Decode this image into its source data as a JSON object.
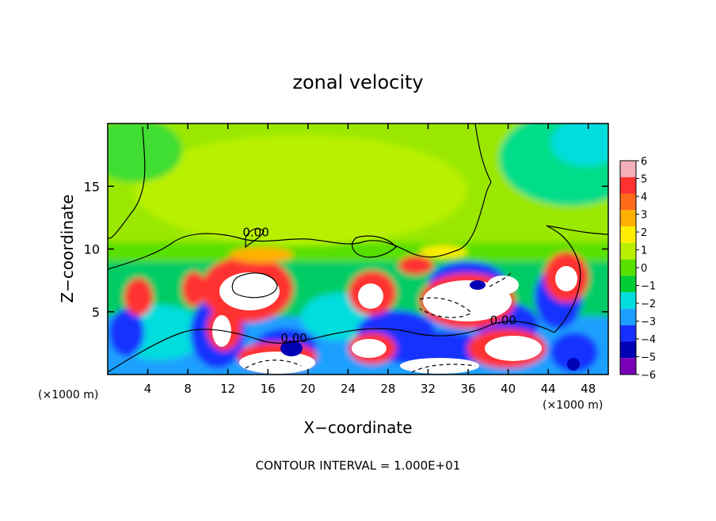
{
  "chart_data": {
    "type": "heatmap",
    "title": "zonal velocity",
    "xlabel": "X−coordinate",
    "ylabel": "Z−coordinate",
    "x_unit_left": "(×1000 m)",
    "x_unit_right": "(×1000 m)",
    "xlim": [
      0,
      50
    ],
    "ylim": [
      0,
      20
    ],
    "x_ticks": [
      4,
      8,
      12,
      16,
      20,
      24,
      28,
      32,
      36,
      40,
      44,
      48
    ],
    "y_ticks": [
      5,
      10,
      15
    ],
    "colorbar": {
      "min": -6,
      "max": 6,
      "ticks": [
        6,
        5,
        4,
        3,
        2,
        1,
        0,
        -1,
        -2,
        -3,
        -4,
        -5,
        -6
      ],
      "colors": [
        "#f4b0b8",
        "#ff3030",
        "#ff6a1a",
        "#ffb000",
        "#ffee00",
        "#b8f000",
        "#58e000",
        "#00cc33",
        "#00dddd",
        "#1ca0ff",
        "#1830ff",
        "#0000b4",
        "#7a00b8"
      ]
    },
    "contour_labels": [
      {
        "text": "0.00",
        "x": 14.8,
        "y": 11.0
      },
      {
        "text": "0.00",
        "x": 18.6,
        "y": 2.6
      },
      {
        "text": "0.00",
        "x": 39.5,
        "y": 4.0
      }
    ],
    "footer": "CONTOUR INTERVAL = 1.000E+01"
  }
}
